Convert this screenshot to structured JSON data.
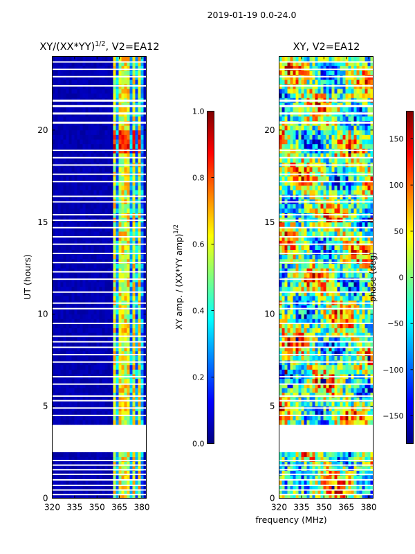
{
  "suptitle": "2019-01-19 0.0-24.0",
  "shared_xlabel": "frequency (MHz)",
  "colors": {
    "jet": [
      "#00007f",
      "#0000ff",
      "#007fff",
      "#00ffff",
      "#7fff7f",
      "#ffff00",
      "#ff7f00",
      "#ff0000",
      "#7f0000"
    ],
    "gap": "#ffffff",
    "axis": "#000000"
  },
  "chart_data": [
    {
      "type": "heatmap",
      "title_main": "XY/(XX*YY)",
      "title_exp": "1/2",
      "title_rest": ", V2=EA12",
      "xlabel": "",
      "ylabel": "UT (hours)",
      "xlim": [
        320,
        383
      ],
      "ylim": [
        0,
        24
      ],
      "xticks": [
        320,
        335,
        350,
        365,
        380
      ],
      "yticks": [
        0,
        5,
        10,
        15,
        20
      ],
      "mode": "amplitude",
      "colorbar": {
        "label_main": "XY amp. / (XX*YY amp)",
        "label_exp": "1/2",
        "range": [
          0.0,
          1.0
        ],
        "ticks": [
          0.0,
          0.2,
          0.4,
          0.6,
          0.8,
          1.0
        ],
        "tick_labels": [
          "0.0",
          "0.2",
          "0.4",
          "0.6",
          "0.8",
          "1.0"
        ]
      },
      "data_blocks": [
        [
          0,
          2.4
        ],
        [
          4.1,
          24
        ]
      ],
      "bright_channel_band_mhz": [
        360,
        381
      ],
      "bright_columns_mhz": [
        361.5,
        365,
        368,
        371.5,
        375,
        378.5
      ]
    },
    {
      "type": "heatmap",
      "title_main": "XY, V2=EA12",
      "xlabel": "",
      "ylabel": "",
      "xlim": [
        320,
        383
      ],
      "ylim": [
        0,
        24
      ],
      "xticks": [
        320,
        335,
        350,
        365,
        380
      ],
      "yticks": [
        0,
        5,
        10,
        15,
        20
      ],
      "mode": "phase",
      "colorbar": {
        "label_main": "phase (deg)",
        "range": [
          -180,
          180
        ],
        "ticks": [
          150,
          100,
          50,
          0,
          -50,
          -100,
          -150
        ],
        "tick_labels": [
          "150",
          "100",
          "50",
          "0",
          "−50",
          "−100",
          "−150"
        ]
      },
      "data_blocks": [
        [
          0,
          2.4
        ],
        [
          4.1,
          24
        ]
      ]
    }
  ]
}
